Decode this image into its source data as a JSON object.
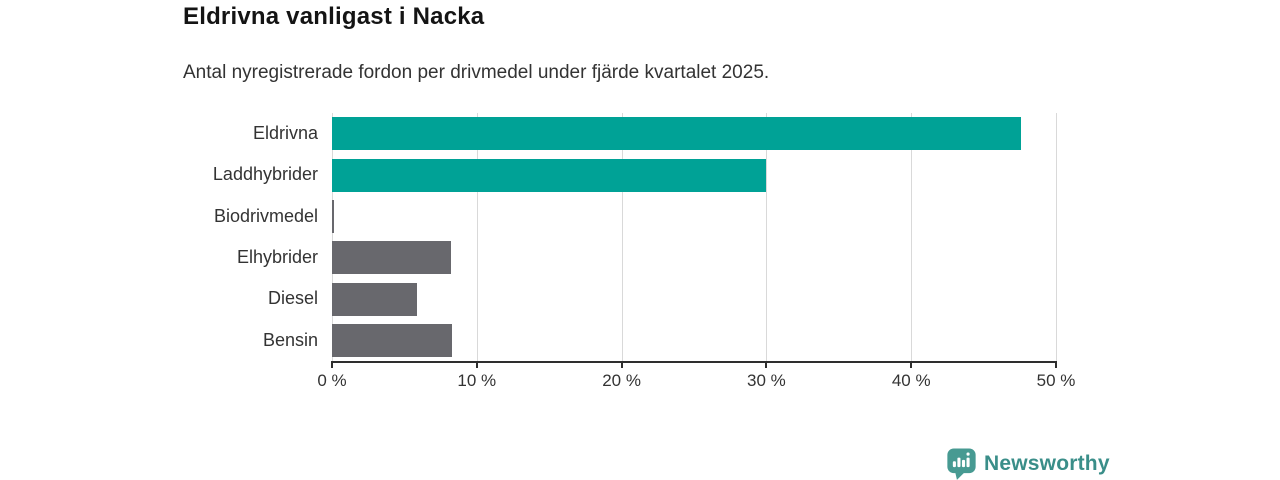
{
  "header": {
    "title": "Eldrivna vanligast i Nacka",
    "subtitle": "Antal nyregistrerade fordon per drivmedel under fjärde kvartalet 2025."
  },
  "footer": {
    "brand": "Newsworthy",
    "logo_icon": "bar-chart-pin-icon"
  },
  "colors": {
    "accent_teal": "#00a296",
    "bar_gray": "#68686d",
    "brand_teal": "#3a8e89",
    "logo_teal": "#479a92",
    "axis": "#2e2e2e",
    "grid": "#d9d9d9",
    "title_text": "#141414",
    "body_text": "#333333"
  },
  "chart_data": {
    "type": "bar",
    "orientation": "horizontal",
    "title": "Eldrivna vanligast i Nacka",
    "subtitle": "Antal nyregistrerade fordon per drivmedel under fjärde kvartalet 2025.",
    "categories": [
      "Eldrivna",
      "Laddhybrider",
      "Biodrivmedel",
      "Elhybrider",
      "Diesel",
      "Bensin"
    ],
    "values": [
      47.6,
      30.0,
      0.1,
      8.2,
      5.9,
      8.3
    ],
    "unit": "%",
    "xlim": [
      0,
      50
    ],
    "xticks": [
      {
        "value": 0,
        "label": "0 %"
      },
      {
        "value": 10,
        "label": "10 %"
      },
      {
        "value": 20,
        "label": "20 %"
      },
      {
        "value": 30,
        "label": "30 %"
      },
      {
        "value": 40,
        "label": "40 %"
      },
      {
        "value": 50,
        "label": "50 %"
      }
    ],
    "bar_colors": [
      "#00a296",
      "#00a296",
      "#68686d",
      "#68686d",
      "#68686d",
      "#68686d"
    ],
    "grid": "vertical",
    "legend": "none"
  }
}
